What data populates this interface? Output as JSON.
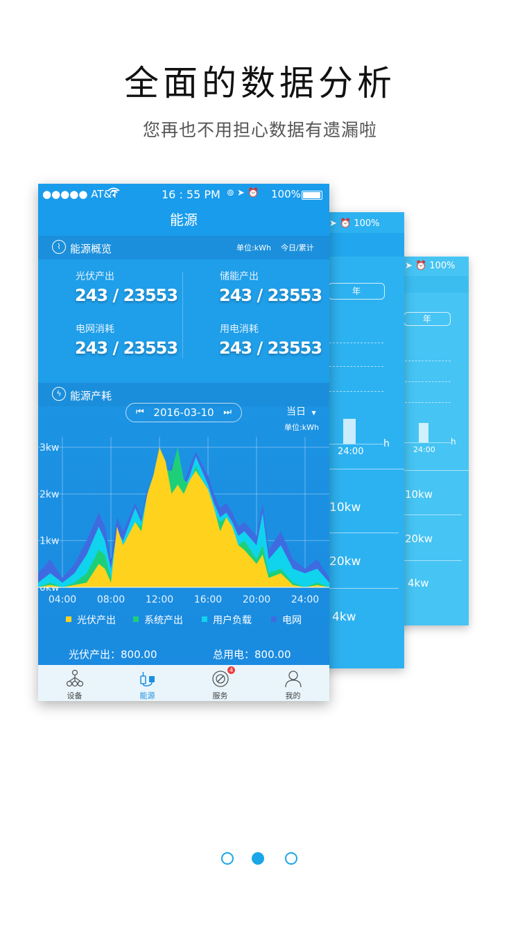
{
  "hero": {
    "title": "全面的数据分析",
    "subtitle": "您再也不用担心数据有遗漏啦"
  },
  "back_card_1": {
    "status_battery": "100%",
    "pill": "年",
    "tick": "24:00",
    "axis_unit": "h",
    "kw": [
      "10kw",
      "20kw",
      "4kw"
    ]
  },
  "back_card_2": {
    "status_battery": "100%",
    "pill": "年",
    "tick": "24:00",
    "axis_unit": "h",
    "kw": [
      "10kw",
      "20kw",
      "4kw"
    ]
  },
  "status_bar": {
    "carrier": "●●●●● AT&T",
    "time": "16 : 55 PM",
    "battery": "100%"
  },
  "nav": {
    "title": "能源"
  },
  "overview": {
    "title": "能源概览",
    "unit": "单位:kWh",
    "toggle": "今日/累计",
    "stats": [
      {
        "label": "光伏产出",
        "value": "243 / 23553"
      },
      {
        "label": "储能产出",
        "value": "243 / 23553"
      },
      {
        "label": "电网消耗",
        "value": "243 / 23553"
      },
      {
        "label": "用电消耗",
        "value": "243 / 23553"
      }
    ]
  },
  "consumption": {
    "title": "能源产耗",
    "date": "2016-03-10",
    "period": "当日",
    "unit": "单位:kWh"
  },
  "chart_data": {
    "type": "area",
    "x_ticks": [
      "04:00",
      "08:00",
      "12:00",
      "16:00",
      "20:00",
      "24:00"
    ],
    "y_ticks": [
      "3kw",
      "2kw",
      "1kw",
      "0kw"
    ],
    "ylim": [
      0,
      3.0
    ],
    "xlim": [
      2,
      26
    ],
    "x": [
      2,
      3,
      4,
      5,
      6,
      7,
      7.5,
      8,
      8.5,
      9,
      10,
      10.5,
      11,
      11.5,
      12,
      12.5,
      13,
      13.5,
      14,
      14.5,
      15,
      16,
      16.5,
      17,
      17.5,
      18,
      18.5,
      19,
      20,
      20.5,
      21,
      22,
      23,
      24,
      25,
      26
    ],
    "series": [
      {
        "name": "电网",
        "color": "#3f6be0",
        "values": [
          0.3,
          0.6,
          0.2,
          0.5,
          1.0,
          1.6,
          1.3,
          0.6,
          1.5,
          1.2,
          1.8,
          1.5,
          2.1,
          1.9,
          2.8,
          2.2,
          2.6,
          2.8,
          2.2,
          2.6,
          2.9,
          2.4,
          2.0,
          1.7,
          1.8,
          1.6,
          1.3,
          1.4,
          1.1,
          1.8,
          0.8,
          1.2,
          0.6,
          0.4,
          0.6,
          0.2
        ]
      },
      {
        "name": "用户负载",
        "color": "#10d3ee",
        "values": [
          0.1,
          0.3,
          0.1,
          0.3,
          0.7,
          1.3,
          1.0,
          0.4,
          1.2,
          1.0,
          1.7,
          1.4,
          2.0,
          2.0,
          2.6,
          2.1,
          2.5,
          2.7,
          2.1,
          2.4,
          2.8,
          2.2,
          1.8,
          1.5,
          1.6,
          1.4,
          1.1,
          1.2,
          0.9,
          1.6,
          0.6,
          0.9,
          0.4,
          0.3,
          0.4,
          0.1
        ]
      },
      {
        "name": "系统产出",
        "color": "#1ecf7a",
        "values": [
          0.0,
          0.1,
          0.0,
          0.1,
          0.3,
          0.8,
          0.7,
          0.2,
          0.8,
          0.7,
          1.4,
          1.3,
          1.9,
          2.1,
          2.9,
          2.5,
          2.5,
          3.0,
          2.3,
          2.2,
          2.6,
          2.0,
          1.6,
          1.4,
          1.5,
          1.2,
          0.9,
          1.0,
          0.6,
          0.9,
          0.3,
          0.4,
          0.1,
          0.0,
          0.1,
          0.0
        ]
      },
      {
        "name": "光伏产出",
        "color": "#ffd21e",
        "values": [
          0.0,
          0.05,
          0.0,
          0.05,
          0.1,
          0.5,
          0.4,
          0.1,
          1.3,
          0.9,
          1.4,
          1.2,
          2.0,
          2.4,
          3.0,
          2.7,
          2.0,
          2.2,
          2.0,
          2.3,
          2.5,
          2.1,
          1.7,
          1.2,
          1.5,
          1.3,
          0.9,
          0.8,
          0.5,
          0.7,
          0.2,
          0.3,
          0.05,
          0.0,
          0.05,
          0.0
        ]
      }
    ]
  },
  "legend": [
    "光伏产出",
    "系统产出",
    "用户负载",
    "电网"
  ],
  "summary": {
    "pv": "光伏产出：800.00",
    "total": "总用电：800.00"
  },
  "tabs": [
    {
      "label": "设备",
      "icon": "network-icon"
    },
    {
      "label": "能源",
      "icon": "energy-icon"
    },
    {
      "label": "服务",
      "icon": "service-icon",
      "badge": "4"
    },
    {
      "label": "我的",
      "icon": "user-icon"
    }
  ],
  "pager": {
    "active_index": 1
  }
}
